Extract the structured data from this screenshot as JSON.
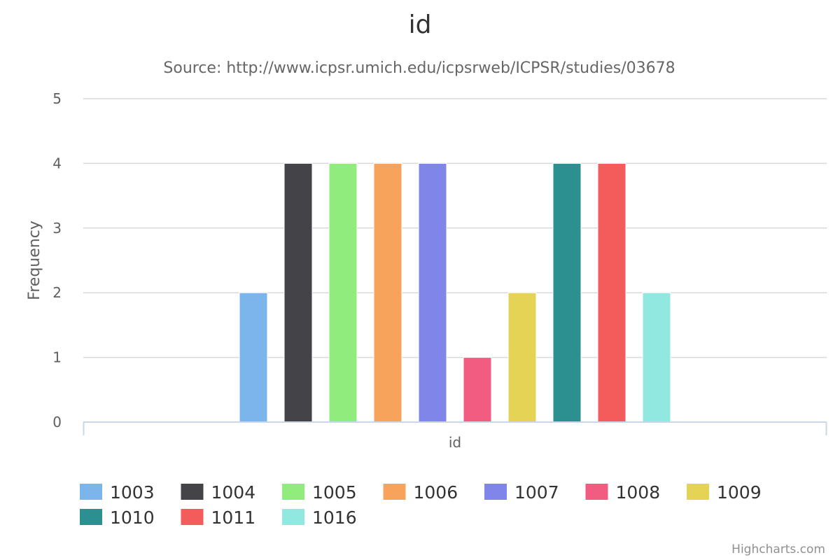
{
  "chart_data": {
    "type": "bar",
    "title": "id",
    "subtitle": "Source: http://www.icpsr.umich.edu/icpsrweb/ICPSR/studies/03678",
    "xlabel": "id",
    "ylabel": "Frequency",
    "ylim": [
      0,
      5
    ],
    "yticks": [
      "0",
      "1",
      "2",
      "3",
      "4",
      "5"
    ],
    "categories": [
      "id"
    ],
    "grid": true,
    "legend_position": "bottom-left",
    "series": [
      {
        "name": "1003",
        "values": [
          2
        ],
        "color": "#7cb5ec"
      },
      {
        "name": "1004",
        "values": [
          4
        ],
        "color": "#434348"
      },
      {
        "name": "1005",
        "values": [
          4
        ],
        "color": "#90ed7d"
      },
      {
        "name": "1006",
        "values": [
          4
        ],
        "color": "#f7a35c"
      },
      {
        "name": "1007",
        "values": [
          4
        ],
        "color": "#8085e9"
      },
      {
        "name": "1008",
        "values": [
          1
        ],
        "color": "#f15c80"
      },
      {
        "name": "1009",
        "values": [
          2
        ],
        "color": "#e4d354"
      },
      {
        "name": "1010",
        "values": [
          4
        ],
        "color": "#2b908f"
      },
      {
        "name": "1011",
        "values": [
          4
        ],
        "color": "#f45b5b"
      },
      {
        "name": "1016",
        "values": [
          2
        ],
        "color": "#91e8e1"
      }
    ]
  },
  "credits": "Highcharts.com"
}
